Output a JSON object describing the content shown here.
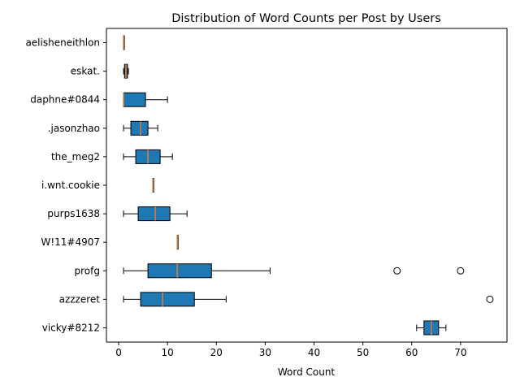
{
  "chart_data": {
    "type": "boxplot",
    "orientation": "horizontal",
    "title": "Distribution of Word Counts per Post by Users",
    "xlabel": "Word Count",
    "ylabel": "",
    "xlim": [
      -2.5,
      79.5
    ],
    "xticks": [
      0,
      10,
      20,
      30,
      40,
      50,
      60,
      70
    ],
    "grid": false,
    "legend": "none",
    "colors": {
      "box_fill": "#1f77b4",
      "median": "#e07b39",
      "whisker": "#000000",
      "flier": "#000000"
    },
    "categories": [
      "aelisheneithlon",
      "eskat.",
      "daphne#0844",
      ".jasonzhao",
      "the_meg2",
      "i.wnt.cookie",
      "purps1638",
      "W!11#4907",
      "profg",
      "azzzeret",
      "vicky#8212"
    ],
    "boxes": [
      {
        "label": "aelisheneithlon",
        "min": 1,
        "q1": 1,
        "median": 1,
        "q3": 1,
        "max": 1,
        "outliers": []
      },
      {
        "label": "eskat.",
        "min": 1,
        "q1": 1.2,
        "median": 1.5,
        "q3": 1.8,
        "max": 2,
        "outliers": []
      },
      {
        "label": "daphne#0844",
        "min": 1,
        "q1": 1,
        "median": 1,
        "q3": 5.5,
        "max": 10,
        "outliers": []
      },
      {
        "label": ".jasonzhao",
        "min": 1,
        "q1": 2.5,
        "median": 4.5,
        "q3": 6,
        "max": 8,
        "outliers": []
      },
      {
        "label": "the_meg2",
        "min": 1,
        "q1": 3.5,
        "median": 6,
        "q3": 8.5,
        "max": 11,
        "outliers": []
      },
      {
        "label": "i.wnt.cookie",
        "min": 7,
        "q1": 7,
        "median": 7,
        "q3": 7,
        "max": 7,
        "outliers": []
      },
      {
        "label": "purps1638",
        "min": 1,
        "q1": 4,
        "median": 7.5,
        "q3": 10.5,
        "max": 14,
        "outliers": []
      },
      {
        "label": "W!11#4907",
        "min": 12,
        "q1": 12,
        "median": 12,
        "q3": 12,
        "max": 12,
        "outliers": []
      },
      {
        "label": "profg",
        "min": 1,
        "q1": 6,
        "median": 12,
        "q3": 19,
        "max": 31,
        "outliers": [
          57,
          70
        ]
      },
      {
        "label": "azzzeret",
        "min": 1,
        "q1": 4.5,
        "median": 9,
        "q3": 15.5,
        "max": 22,
        "outliers": [
          76
        ]
      },
      {
        "label": "vicky#8212",
        "min": 61,
        "q1": 62.5,
        "median": 64,
        "q3": 65.5,
        "max": 67,
        "outliers": []
      }
    ]
  }
}
